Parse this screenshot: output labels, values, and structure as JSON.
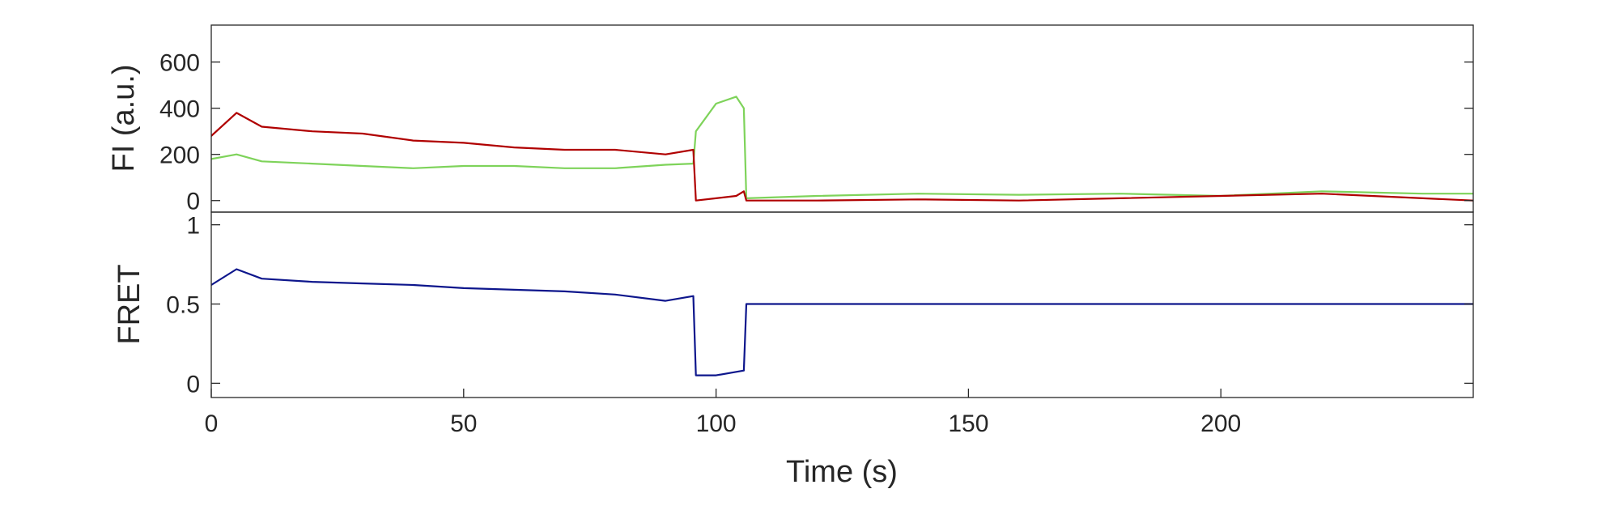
{
  "chart_data": [
    {
      "type": "line",
      "title": "",
      "ylabel": "FI (a.u.)",
      "xlabel": "",
      "xlim": [
        0,
        250
      ],
      "ylim": [
        -50,
        760
      ],
      "yticks": [
        0,
        200,
        400,
        600
      ],
      "ytick_labels": [
        "0",
        "200",
        "400",
        "600"
      ],
      "grid": false,
      "legend": "none",
      "series": [
        {
          "color": "#7ed35a",
          "x": [
            0,
            5,
            10,
            20,
            30,
            40,
            50,
            60,
            70,
            80,
            90,
            95.5,
            96,
            100,
            104,
            105.5,
            106,
            120,
            140,
            160,
            180,
            200,
            220,
            240,
            250
          ],
          "values": [
            180,
            200,
            170,
            160,
            150,
            140,
            150,
            150,
            140,
            140,
            155,
            160,
            300,
            420,
            450,
            400,
            10,
            20,
            30,
            25,
            30,
            20,
            40,
            30,
            30
          ]
        },
        {
          "color": "#b00000",
          "x": [
            0,
            5,
            10,
            20,
            30,
            40,
            50,
            60,
            70,
            80,
            90,
            95.5,
            96,
            100,
            104,
            105.5,
            106,
            120,
            140,
            160,
            180,
            200,
            220,
            240,
            250
          ],
          "values": [
            280,
            380,
            320,
            300,
            290,
            260,
            250,
            230,
            220,
            220,
            200,
            220,
            0,
            10,
            20,
            40,
            0,
            0,
            5,
            0,
            10,
            20,
            30,
            10,
            0
          ]
        }
      ]
    },
    {
      "type": "line",
      "title": "",
      "ylabel": "FRET",
      "xlabel": "Time (s)",
      "xlim": [
        0,
        250
      ],
      "ylim": [
        -0.09,
        1.08
      ],
      "yticks": [
        0,
        0.5,
        1
      ],
      "ytick_labels": [
        "0",
        "0.5",
        "1"
      ],
      "xticks": [
        0,
        50,
        100,
        150,
        200
      ],
      "xtick_labels": [
        "0",
        "50",
        "100",
        "150",
        "200"
      ],
      "grid": false,
      "legend": "none",
      "series": [
        {
          "color": "#0d168c",
          "x": [
            0,
            5,
            10,
            20,
            30,
            40,
            50,
            60,
            70,
            80,
            90,
            95.5,
            96,
            100,
            105.5,
            106,
            130,
            160,
            190,
            220,
            250
          ],
          "values": [
            0.62,
            0.72,
            0.66,
            0.64,
            0.63,
            0.62,
            0.6,
            0.59,
            0.58,
            0.56,
            0.52,
            0.55,
            0.05,
            0.05,
            0.08,
            0.5,
            0.5,
            0.5,
            0.5,
            0.5,
            0.5
          ]
        }
      ]
    }
  ]
}
